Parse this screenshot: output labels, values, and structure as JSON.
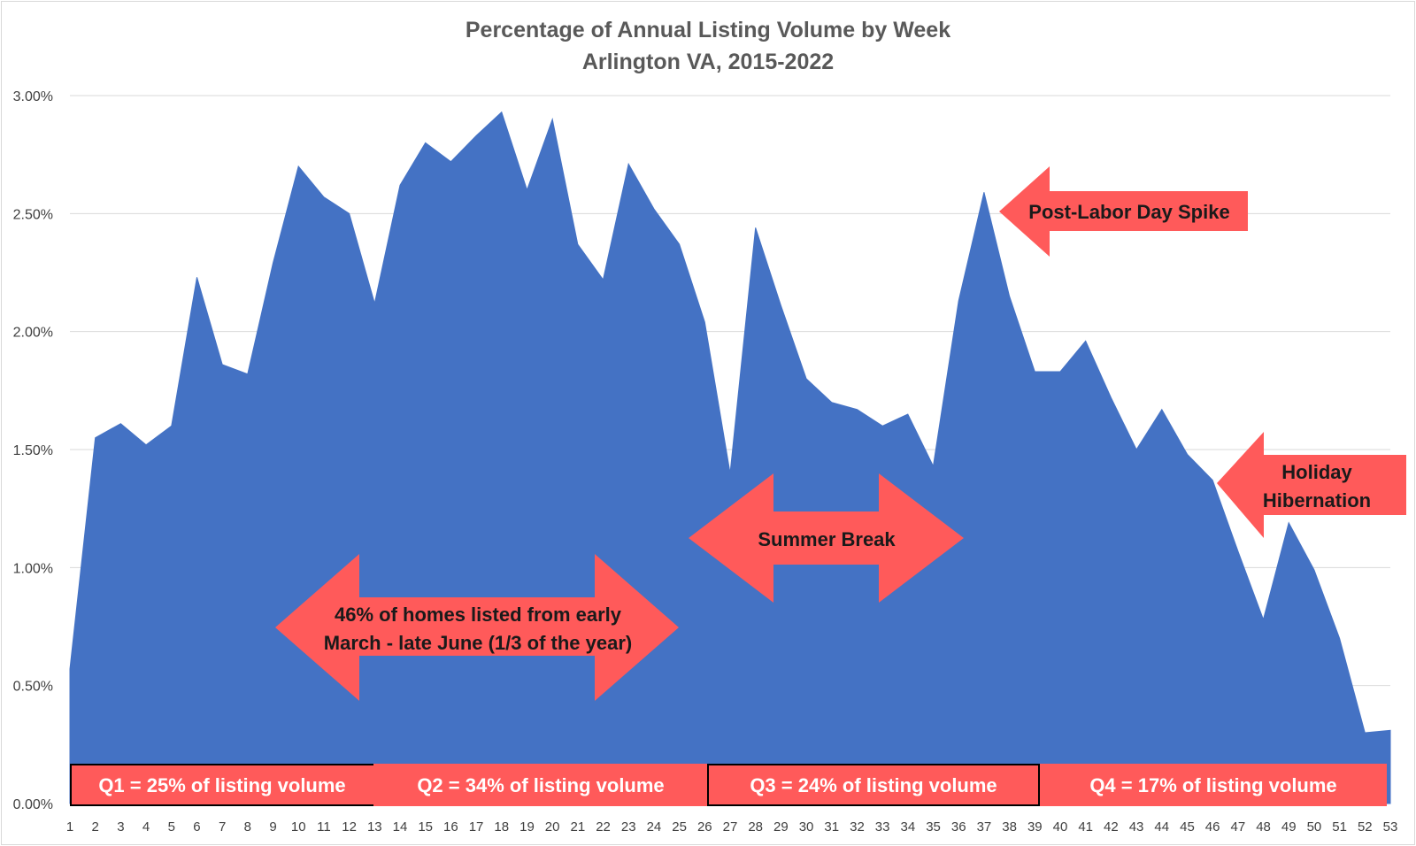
{
  "chart_data": {
    "type": "area",
    "title": "Percentage of Annual Listing Volume by Week",
    "subtitle": "Arlington VA, 2015-2022",
    "xlabel": "",
    "ylabel": "",
    "ylim": [
      0,
      3.0
    ],
    "yticks": [
      "0.00%",
      "0.50%",
      "1.00%",
      "1.50%",
      "2.00%",
      "2.50%",
      "3.00%"
    ],
    "grid": true,
    "legend": "none",
    "x": [
      1,
      2,
      3,
      4,
      5,
      6,
      7,
      8,
      9,
      10,
      11,
      12,
      13,
      14,
      15,
      16,
      17,
      18,
      19,
      20,
      21,
      22,
      23,
      24,
      25,
      26,
      27,
      28,
      29,
      30,
      31,
      32,
      33,
      34,
      35,
      36,
      37,
      38,
      39,
      40,
      41,
      42,
      43,
      44,
      45,
      46,
      47,
      48,
      49,
      50,
      51,
      52,
      53
    ],
    "values": [
      0.57,
      1.55,
      1.61,
      1.52,
      1.6,
      2.23,
      1.86,
      1.82,
      2.29,
      2.7,
      2.57,
      2.5,
      2.12,
      2.62,
      2.8,
      2.72,
      2.83,
      2.93,
      2.6,
      2.9,
      2.37,
      2.22,
      2.71,
      2.52,
      2.37,
      2.04,
      1.4,
      2.44,
      2.11,
      1.8,
      1.7,
      1.67,
      1.6,
      1.65,
      1.43,
      2.13,
      2.59,
      2.15,
      1.83,
      1.83,
      1.96,
      1.72,
      1.5,
      1.67,
      1.48,
      1.37,
      1.07,
      0.78,
      1.19,
      0.99,
      0.7,
      0.3,
      0.31
    ],
    "series_color": "#4472c4",
    "annotations": {
      "spring": {
        "line1": "46% of homes listed from early",
        "line2": "March - late June (1/3 of the year)"
      },
      "summer": "Summer Break",
      "labor_day": "Post-Labor Day Spike",
      "holiday": {
        "line1": "Holiday",
        "line2": "Hibernation"
      }
    },
    "arrow_color": "#ff5a5a",
    "quarters": [
      {
        "label": "Q1 = 25% of listing volume",
        "from_week": 1,
        "to_week": 13
      },
      {
        "label": "Q2 = 34% of listing volume",
        "from_week": 13,
        "to_week": 26
      },
      {
        "label": "Q3 = 24% of listing volume",
        "from_week": 26,
        "to_week": 39
      },
      {
        "label": "Q4 = 17% of listing volume",
        "from_week": 39,
        "to_week": 53
      }
    ]
  }
}
